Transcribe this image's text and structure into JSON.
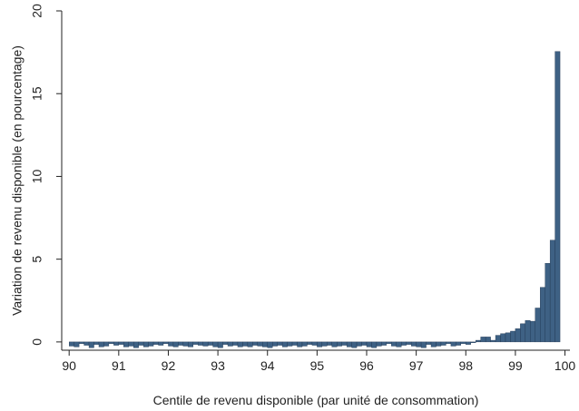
{
  "chart_data": {
    "type": "bar",
    "title": "",
    "xlabel": "Centile de revenu disponible (par unité de consommation)",
    "ylabel": "Variation de revenu disponible (en pourcentage)",
    "xlim": [
      90,
      100
    ],
    "ylim": [
      -0.5,
      20
    ],
    "bar_width": 0.1,
    "bar_color": "#3e6184",
    "bar_edge_color": "#1f3550",
    "grid": false,
    "x_ticks": [
      "90",
      "91",
      "92",
      "93",
      "94",
      "95",
      "96",
      "97",
      "98",
      "99",
      "100"
    ],
    "y_ticks": [
      "0",
      "5",
      "10",
      "15",
      "20"
    ],
    "x": [
      90.1,
      90.2,
      90.3,
      90.4,
      90.5,
      90.6,
      90.7,
      90.8,
      90.9,
      91.0,
      91.1,
      91.2,
      91.3,
      91.4,
      91.5,
      91.6,
      91.7,
      91.8,
      91.9,
      92.0,
      92.1,
      92.2,
      92.3,
      92.4,
      92.5,
      92.6,
      92.7,
      92.8,
      92.9,
      93.0,
      93.1,
      93.2,
      93.3,
      93.4,
      93.5,
      93.6,
      93.7,
      93.8,
      93.9,
      94.0,
      94.1,
      94.2,
      94.3,
      94.4,
      94.5,
      94.6,
      94.7,
      94.8,
      94.9,
      95.0,
      95.1,
      95.2,
      95.3,
      95.4,
      95.5,
      95.6,
      95.7,
      95.8,
      95.9,
      96.0,
      96.1,
      96.2,
      96.3,
      96.4,
      96.5,
      96.6,
      96.7,
      96.8,
      96.9,
      97.0,
      97.1,
      97.2,
      97.3,
      97.4,
      97.5,
      97.6,
      97.7,
      97.8,
      97.9,
      98.0,
      98.1,
      98.2,
      98.3,
      98.4,
      98.5,
      98.6,
      98.7,
      98.8,
      98.9,
      99.0,
      99.1,
      99.2,
      99.3,
      99.4,
      99.5,
      99.6,
      99.7,
      99.8,
      99.9,
      100.0
    ],
    "values": [
      -0.25,
      -0.3,
      -0.1,
      -0.2,
      -0.35,
      -0.15,
      -0.3,
      -0.25,
      -0.1,
      -0.2,
      -0.15,
      -0.3,
      -0.25,
      -0.35,
      -0.2,
      -0.3,
      -0.25,
      -0.15,
      -0.2,
      -0.1,
      -0.25,
      -0.3,
      -0.2,
      -0.25,
      -0.3,
      -0.15,
      -0.2,
      -0.25,
      -0.2,
      -0.3,
      -0.35,
      -0.15,
      -0.25,
      -0.2,
      -0.3,
      -0.25,
      -0.3,
      -0.2,
      -0.25,
      -0.3,
      -0.35,
      -0.25,
      -0.2,
      -0.3,
      -0.25,
      -0.2,
      -0.3,
      -0.25,
      -0.15,
      -0.2,
      -0.3,
      -0.25,
      -0.2,
      -0.3,
      -0.25,
      -0.2,
      -0.3,
      -0.35,
      -0.25,
      -0.2,
      -0.3,
      -0.35,
      -0.25,
      -0.2,
      -0.1,
      -0.25,
      -0.3,
      -0.2,
      -0.15,
      -0.25,
      -0.3,
      -0.35,
      -0.15,
      -0.3,
      -0.25,
      -0.2,
      -0.1,
      -0.25,
      -0.2,
      -0.1,
      -0.15,
      -0.05,
      0.1,
      0.3,
      0.3,
      0.1,
      0.4,
      0.5,
      0.55,
      0.65,
      0.8,
      1.1,
      1.3,
      1.25,
      2.05,
      3.3,
      4.75,
      6.15,
      17.55,
      0.0
    ]
  }
}
